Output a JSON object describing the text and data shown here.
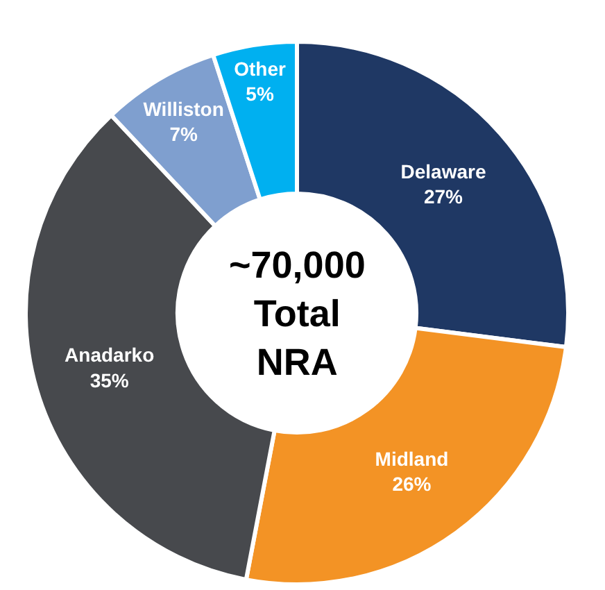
{
  "chart_data": {
    "type": "donut",
    "categories": [
      "Delaware",
      "Midland",
      "Anadarko",
      "Williston",
      "Other"
    ],
    "values": [
      27,
      26,
      35,
      7,
      5
    ],
    "value_labels": [
      "27%",
      "26%",
      "35%",
      "7%",
      "5%"
    ],
    "colors": [
      "#1f3864",
      "#f39325",
      "#47494d",
      "#7f9fcf",
      "#00b0f0"
    ],
    "annotations": [
      "~70,000\nTotal\nNRA"
    ],
    "legend": false
  }
}
